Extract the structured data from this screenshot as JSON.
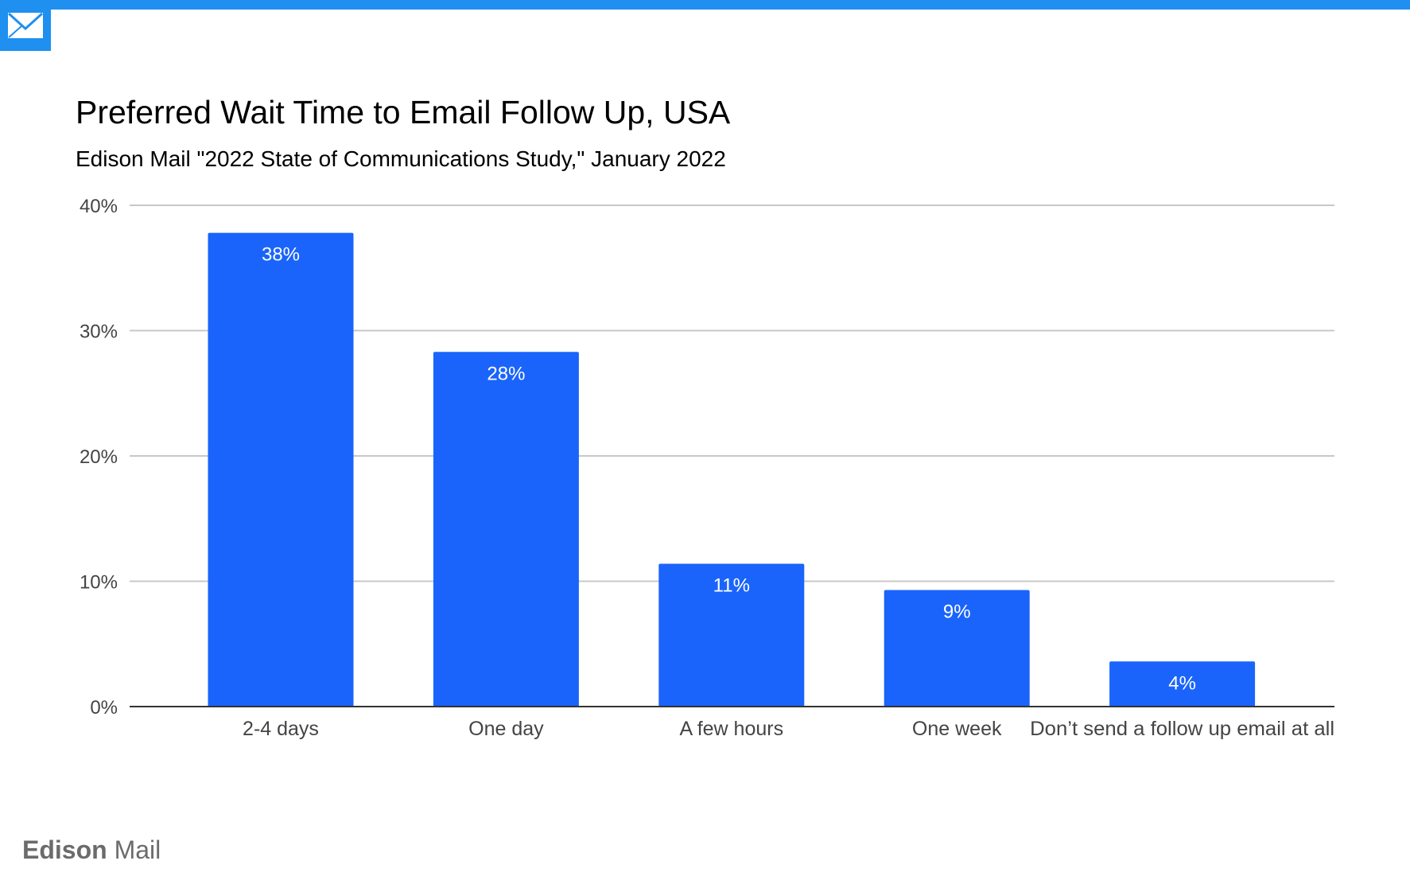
{
  "header": {
    "logo_icon": "envelope-icon",
    "accent_color": "#1f8ff0"
  },
  "chart_data": {
    "type": "bar",
    "title": "Preferred Wait Time to Email Follow Up, USA",
    "subtitle": "Edison Mail \"2022 State of Communications Study,\" January 2022",
    "categories": [
      "2-4 days",
      "One day",
      "A few hours",
      "One week",
      "Don’t send a follow up email at all"
    ],
    "values": [
      38,
      28,
      11,
      9,
      4
    ],
    "value_labels": [
      "38%",
      "28%",
      "11%",
      "9%",
      "4%"
    ],
    "plot_values": [
      37.8,
      28.3,
      11.4,
      9.3,
      3.6
    ],
    "ylim": [
      0,
      40
    ],
    "yticks": [
      0,
      10,
      20,
      30,
      40
    ],
    "ytick_labels": [
      "0%",
      "10%",
      "20%",
      "30%",
      "40%"
    ],
    "xlabel": "",
    "ylabel": "",
    "grid": true,
    "legend": "none",
    "bar_color": "#1a64fb"
  },
  "footer": {
    "brand_bold": "Edison",
    "brand_light": " Mail"
  }
}
